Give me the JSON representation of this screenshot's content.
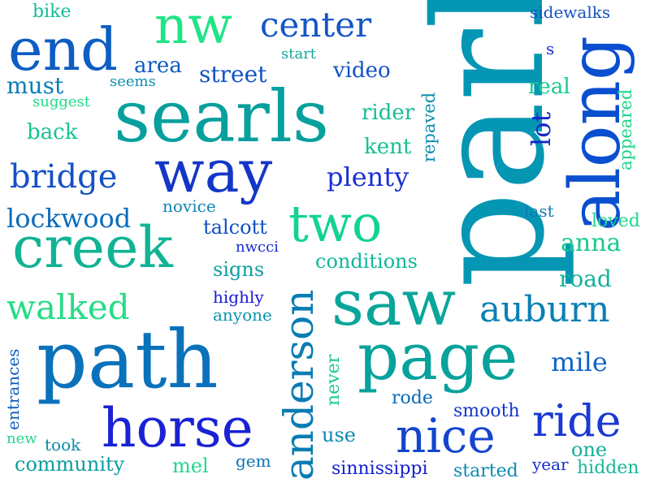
{
  "words": [
    {
      "text": "park",
      "color": "#0596b4"
    },
    {
      "text": "searls",
      "color": "#07a09d"
    },
    {
      "text": "path",
      "color": "#0a72bb"
    },
    {
      "text": "saw",
      "color": "#0aa59a"
    },
    {
      "text": "page",
      "color": "#07a29b"
    },
    {
      "text": "way",
      "color": "#1436c7"
    },
    {
      "text": "along",
      "color": "#0a4fd0"
    },
    {
      "text": "creek",
      "color": "#11b394"
    },
    {
      "text": "horse",
      "color": "#1a22d4"
    },
    {
      "text": "end",
      "color": "#0d5dc2"
    },
    {
      "text": "two",
      "color": "#12d48e"
    },
    {
      "text": "nw",
      "color": "#20e486"
    },
    {
      "text": "nice",
      "color": "#1445cf"
    },
    {
      "text": "anderson",
      "color": "#0a7cb3"
    },
    {
      "text": "ride",
      "color": "#1b39d2"
    },
    {
      "text": "bridge",
      "color": "#1550c7"
    },
    {
      "text": "auburn",
      "color": "#0a80b5"
    },
    {
      "text": "center",
      "color": "#1656c7"
    },
    {
      "text": "walked",
      "color": "#24dd85"
    },
    {
      "text": "lockwood",
      "color": "#0b6cbc"
    },
    {
      "text": "plenty",
      "color": "#1b2ed4"
    },
    {
      "text": "community",
      "color": "#0a9ea0"
    },
    {
      "text": "anna",
      "color": "#17c991"
    },
    {
      "text": "conditions",
      "color": "#0fb79a"
    },
    {
      "text": "mile",
      "color": "#0f64c6"
    },
    {
      "text": "road",
      "color": "#12b39b"
    },
    {
      "text": "street",
      "color": "#1253c4"
    },
    {
      "text": "must",
      "color": "#0a7cb8"
    },
    {
      "text": "area",
      "color": "#0d5abf"
    },
    {
      "text": "video",
      "color": "#1450c6"
    },
    {
      "text": "rider",
      "color": "#15bf94"
    },
    {
      "text": "kent",
      "color": "#16c092"
    },
    {
      "text": "back",
      "color": "#17c394"
    },
    {
      "text": "real",
      "color": "#18c892"
    },
    {
      "text": "lot",
      "color": "#1427c9"
    },
    {
      "text": "signs",
      "color": "#0d9fa3"
    },
    {
      "text": "talcott",
      "color": "#0d4fc2"
    },
    {
      "text": "bike",
      "color": "#14bd97"
    },
    {
      "text": "loved",
      "color": "#1bd68f"
    },
    {
      "text": "one",
      "color": "#11b19a"
    },
    {
      "text": "smooth",
      "color": "#1438c8"
    },
    {
      "text": "use",
      "color": "#0a8ab2"
    },
    {
      "text": "rode",
      "color": "#0a6ab8"
    },
    {
      "text": "mel",
      "color": "#1fd88c"
    },
    {
      "text": "hidden",
      "color": "#17b79a"
    },
    {
      "text": "year",
      "color": "#1430c9"
    },
    {
      "text": "started",
      "color": "#0d8ab0"
    },
    {
      "text": "sinnissippi",
      "color": "#1321cf"
    },
    {
      "text": "took",
      "color": "#0c8aae"
    },
    {
      "text": "gem",
      "color": "#0b74b5"
    },
    {
      "text": "highly",
      "color": "#1618d5"
    },
    {
      "text": "anyone",
      "color": "#0b93a8"
    },
    {
      "text": "novice",
      "color": "#0f83b6"
    },
    {
      "text": "nwcci",
      "color": "#1a2bd0"
    },
    {
      "text": "last",
      "color": "#0d7ab4"
    },
    {
      "text": "sidewalks",
      "color": "#1452c4"
    },
    {
      "text": "s",
      "color": "#1a2dd0"
    },
    {
      "text": "start",
      "color": "#12a89e"
    },
    {
      "text": "seems",
      "color": "#0f8fb0"
    },
    {
      "text": "suggest",
      "color": "#1fdc8a"
    },
    {
      "text": "repaved",
      "color": "#0e8eb0"
    },
    {
      "text": "appeared",
      "color": "#1fd58b"
    },
    {
      "text": "never",
      "color": "#1ac895"
    },
    {
      "text": "entrances",
      "color": "#0d5ebe"
    },
    {
      "text": "new",
      "color": "#1fd58b"
    }
  ]
}
